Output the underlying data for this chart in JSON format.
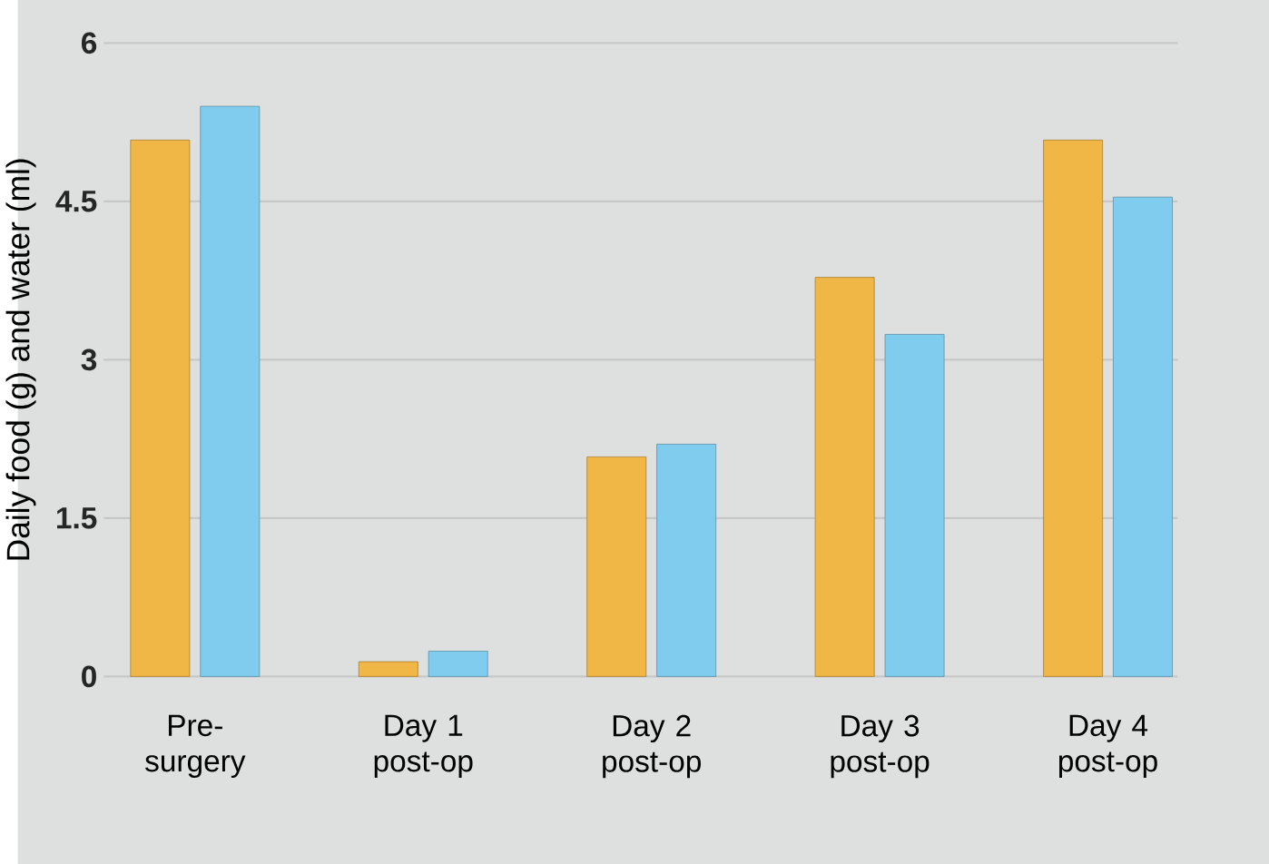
{
  "chart_data": {
    "type": "bar",
    "ylabel": "Daily food (g) and water (ml)",
    "categories": [
      "Pre-surgery",
      "Day 1 post-op",
      "Day 2 post-op",
      "Day 3 post-op",
      "Day 4 post-op"
    ],
    "series": [
      {
        "color": "#f0b646",
        "values": [
          5.08,
          0.14,
          2.08,
          3.78,
          5.08
        ]
      },
      {
        "color": "#80ccef",
        "values": [
          5.4,
          0.24,
          2.2,
          3.24,
          4.54
        ]
      }
    ],
    "ylim": [
      0,
      6
    ],
    "yticks": [
      0,
      1.5,
      3,
      4.5,
      6
    ],
    "grid": "y"
  }
}
